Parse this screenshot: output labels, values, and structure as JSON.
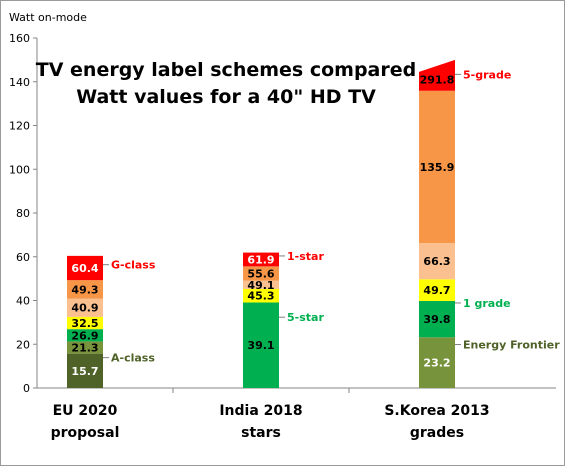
{
  "chart_data": {
    "type": "bar",
    "stacked": true,
    "title_lines": [
      "TV energy label schemes compared",
      "Watt values for a 40\" HD TV"
    ],
    "ylabel": "Watt on-mode",
    "xlabel": "",
    "ylim": [
      0,
      160
    ],
    "yticks": [
      0,
      20,
      40,
      60,
      80,
      100,
      120,
      140,
      160
    ],
    "grid": false,
    "categories": [
      {
        "label_lines": [
          "EU 2020",
          "proposal"
        ]
      },
      {
        "label_lines": [
          "India 2018",
          "stars"
        ]
      },
      {
        "label_lines": [
          "S.Korea 2013",
          "grades"
        ]
      }
    ],
    "stacks": [
      {
        "category": "EU 2020 proposal",
        "segments": [
          {
            "label": "15.7",
            "bottom": 0,
            "top": 15.7,
            "color": "#4f6228",
            "text_color": "#ffffff"
          },
          {
            "label": "21.3",
            "bottom": 15.7,
            "top": 21.3,
            "color": "#77933c",
            "text_color": "#000000"
          },
          {
            "label": "26.9",
            "bottom": 21.3,
            "top": 26.9,
            "color": "#00b050",
            "text_color": "#000000"
          },
          {
            "label": "32.5",
            "bottom": 26.9,
            "top": 32.5,
            "color": "#ffff00",
            "text_color": "#000000"
          },
          {
            "label": "40.9",
            "bottom": 32.5,
            "top": 40.9,
            "color": "#fac090",
            "text_color": "#000000"
          },
          {
            "label": "49.3",
            "bottom": 40.9,
            "top": 49.3,
            "color": "#f79646",
            "text_color": "#000000"
          },
          {
            "label": "60.4",
            "bottom": 49.3,
            "top": 60.4,
            "color": "#ff0000",
            "text_color": "#ffffff"
          }
        ],
        "annotations": [
          {
            "text": "G-class",
            "value": 55,
            "color": "#ff0000"
          },
          {
            "text": "A-class",
            "value": 12.5,
            "color": "#4f6228"
          }
        ]
      },
      {
        "category": "India 2018 stars",
        "segments": [
          {
            "label": "39.1",
            "bottom": 0,
            "top": 39.1,
            "color": "#00b050",
            "text_color": "#000000"
          },
          {
            "label": "45.3",
            "bottom": 39.1,
            "top": 45.3,
            "color": "#ffff00",
            "text_color": "#000000"
          },
          {
            "label": "49.1",
            "bottom": 45.3,
            "top": 49.1,
            "color": "#fac090",
            "text_color": "#000000"
          },
          {
            "label": "55.6",
            "bottom": 49.1,
            "top": 55.6,
            "color": "#f79646",
            "text_color": "#000000"
          },
          {
            "label": "61.9",
            "bottom": 55.6,
            "top": 61.9,
            "color": "#ff0000",
            "text_color": "#ffffff"
          }
        ],
        "annotations": [
          {
            "text": "1-star",
            "value": 59,
            "color": "#ff0000"
          },
          {
            "text": "5-star",
            "value": 31,
            "color": "#00b050"
          }
        ]
      },
      {
        "category": "S.Korea 2013 grades",
        "segments": [
          {
            "label": "23.2",
            "bottom": 0,
            "top": 23.2,
            "color": "#77933c",
            "text_color": "#ffffff"
          },
          {
            "label": "39.8",
            "bottom": 23.2,
            "top": 39.8,
            "color": "#00b050",
            "text_color": "#000000"
          },
          {
            "label": "49.7",
            "bottom": 39.8,
            "top": 49.7,
            "color": "#ffff00",
            "text_color": "#000000"
          },
          {
            "label": "66.3",
            "bottom": 49.7,
            "top": 66.3,
            "color": "#fac090",
            "text_color": "#000000"
          },
          {
            "label": "135.9",
            "bottom": 66.3,
            "top": 135.9,
            "color": "#f79646",
            "text_color": "#000000"
          },
          {
            "label": "291.8",
            "bottom": 135.9,
            "top": 150,
            "color": "#ff0000",
            "text_color": "#000000",
            "cut_top": true
          }
        ],
        "annotations": [
          {
            "text": "5-grade",
            "value": 142,
            "color": "#ff0000"
          },
          {
            "text": "1 grade",
            "value": 37.5,
            "color": "#00b050"
          },
          {
            "text": "Energy Frontier",
            "value": 18.5,
            "color": "#4f6228"
          }
        ]
      }
    ]
  }
}
